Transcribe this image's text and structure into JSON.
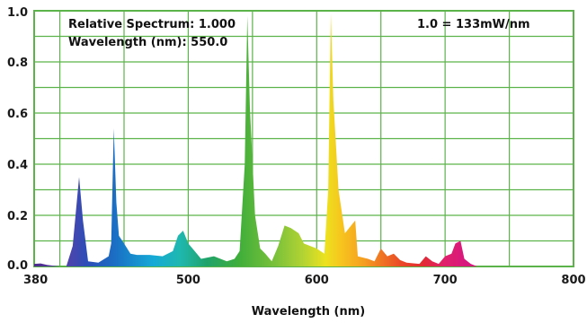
{
  "chart_data": {
    "type": "area",
    "x_label": "Wavelength (nm)",
    "x_ticks": [
      "380",
      "500",
      "600",
      "700",
      "800"
    ],
    "y_ticks": [
      "0.0",
      "0.2",
      "0.4",
      "0.6",
      "0.8",
      "1.0"
    ],
    "xlim": [
      380,
      800
    ],
    "ylim": [
      0,
      1.0
    ],
    "grid": true,
    "grid_color": "#5cb34a",
    "annotations": {
      "relative_spectrum": "Relative Spectrum: 1.000",
      "wavelength": "Wavelength (nm): 550.0",
      "scale": "1.0 = 133mW/nm"
    },
    "points": [
      [
        380,
        0.01
      ],
      [
        385,
        0.012
      ],
      [
        390,
        0.006
      ],
      [
        400,
        0.0
      ],
      [
        405,
        0.0
      ],
      [
        410,
        0.08
      ],
      [
        415,
        0.35
      ],
      [
        418,
        0.18
      ],
      [
        422,
        0.02
      ],
      [
        430,
        0.015
      ],
      [
        438,
        0.04
      ],
      [
        440,
        0.09
      ],
      [
        442,
        0.54
      ],
      [
        444,
        0.25
      ],
      [
        446,
        0.12
      ],
      [
        450,
        0.09
      ],
      [
        455,
        0.05
      ],
      [
        460,
        0.045
      ],
      [
        470,
        0.045
      ],
      [
        480,
        0.04
      ],
      [
        488,
        0.06
      ],
      [
        492,
        0.12
      ],
      [
        496,
        0.14
      ],
      [
        500,
        0.09
      ],
      [
        505,
        0.06
      ],
      [
        510,
        0.03
      ],
      [
        520,
        0.04
      ],
      [
        530,
        0.02
      ],
      [
        536,
        0.03
      ],
      [
        540,
        0.06
      ],
      [
        544,
        0.4
      ],
      [
        546,
        0.98
      ],
      [
        548,
        0.62
      ],
      [
        552,
        0.2
      ],
      [
        556,
        0.07
      ],
      [
        560,
        0.05
      ],
      [
        565,
        0.02
      ],
      [
        570,
        0.08
      ],
      [
        575,
        0.16
      ],
      [
        580,
        0.15
      ],
      [
        586,
        0.13
      ],
      [
        590,
        0.09
      ],
      [
        600,
        0.07
      ],
      [
        606,
        0.05
      ],
      [
        609,
        0.3
      ],
      [
        611,
        0.99
      ],
      [
        613,
        0.65
      ],
      [
        617,
        0.3
      ],
      [
        622,
        0.13
      ],
      [
        630,
        0.18
      ],
      [
        632,
        0.04
      ],
      [
        640,
        0.03
      ],
      [
        645,
        0.02
      ],
      [
        650,
        0.07
      ],
      [
        655,
        0.04
      ],
      [
        660,
        0.05
      ],
      [
        665,
        0.025
      ],
      [
        670,
        0.015
      ],
      [
        680,
        0.01
      ],
      [
        685,
        0.04
      ],
      [
        690,
        0.02
      ],
      [
        695,
        0.01
      ],
      [
        700,
        0.04
      ],
      [
        705,
        0.05
      ],
      [
        708,
        0.09
      ],
      [
        712,
        0.1
      ],
      [
        715,
        0.03
      ],
      [
        720,
        0.01
      ],
      [
        725,
        0.0
      ],
      [
        800,
        0.0
      ]
    ]
  }
}
